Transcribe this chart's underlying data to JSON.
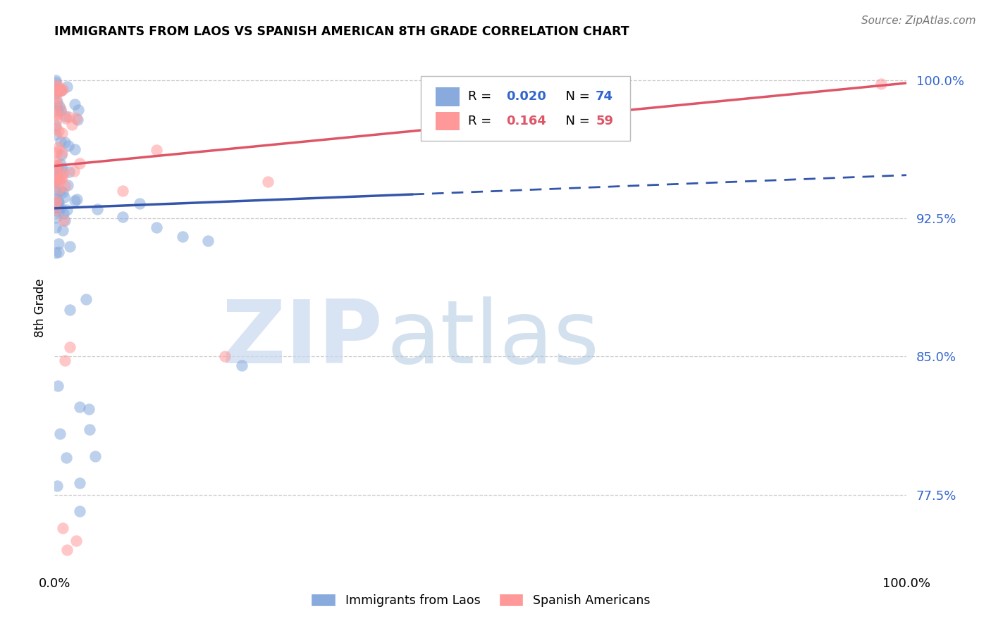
{
  "title": "IMMIGRANTS FROM LAOS VS SPANISH AMERICAN 8TH GRADE CORRELATION CHART",
  "source": "Source: ZipAtlas.com",
  "ylabel": "8th Grade",
  "xlim": [
    0.0,
    1.0
  ],
  "ylim": [
    0.735,
    1.018
  ],
  "yticks": [
    0.775,
    0.85,
    0.925,
    1.0
  ],
  "ytick_labels": [
    "77.5%",
    "85.0%",
    "92.5%",
    "100.0%"
  ],
  "blue_color": "#88AADD",
  "pink_color": "#FF9999",
  "blue_line_color": "#3355AA",
  "pink_line_color": "#DD5566",
  "R_blue": 0.02,
  "N_blue": 74,
  "R_pink": 0.164,
  "N_pink": 59,
  "watermark_zip": "ZIP",
  "watermark_atlas": "atlas",
  "legend_label_blue": "Immigrants from Laos",
  "legend_label_pink": "Spanish Americans",
  "blue_line_solid_end": 0.42,
  "blue_line_y_start": 0.9305,
  "blue_line_y_end": 0.9485,
  "pink_line_y_start": 0.9535,
  "pink_line_y_end": 0.9985
}
